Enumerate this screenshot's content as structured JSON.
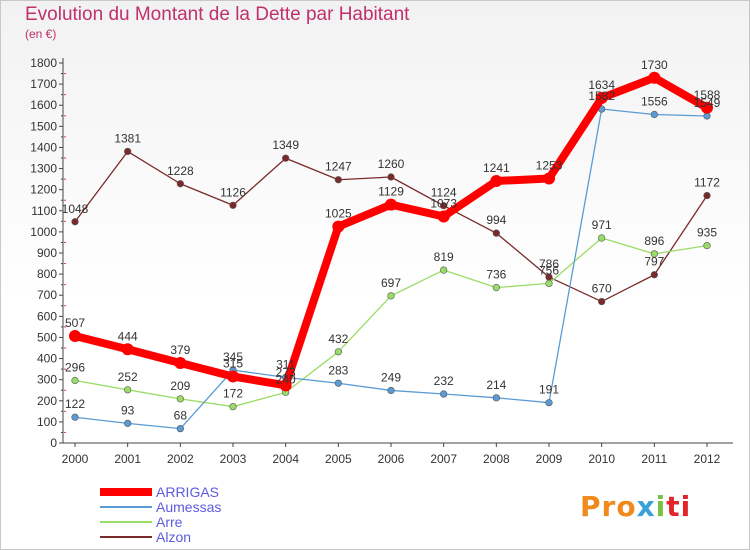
{
  "chart_data": {
    "type": "line",
    "title": "Evolution du Montant de la Dette par Habitant",
    "subtitle": "(en €)",
    "x": [
      "2000",
      "2001",
      "2002",
      "2003",
      "2004",
      "2005",
      "2006",
      "2007",
      "2008",
      "2009",
      "2010",
      "2011",
      "2012"
    ],
    "ylim": [
      0,
      1800
    ],
    "yticks": [
      0,
      100,
      200,
      300,
      400,
      500,
      600,
      700,
      800,
      900,
      1000,
      1100,
      1200,
      1300,
      1400,
      1500,
      1600,
      1700,
      1800
    ],
    "grid": false,
    "legend_position": "bottom-left",
    "series": [
      {
        "name": "ARRIGAS",
        "color": "#ff0000",
        "values": [
          507,
          444,
          379,
          315,
          273,
          1025,
          1129,
          1073,
          1241,
          1253,
          1634,
          1730,
          1588
        ]
      },
      {
        "name": "Aumessas",
        "color": "#5b9bd5",
        "values": [
          122,
          93,
          68,
          345,
          311,
          283,
          249,
          232,
          214,
          191,
          1582,
          1556,
          1549
        ]
      },
      {
        "name": "Arre",
        "color": "#99dd66",
        "values": [
          296,
          252,
          209,
          172,
          240,
          432,
          697,
          819,
          736,
          756,
          971,
          896,
          935
        ]
      },
      {
        "name": "Alzon",
        "color": "#7a2a2a",
        "values": [
          1048,
          1381,
          1228,
          1126,
          1349,
          1247,
          1260,
          1124,
          994,
          786,
          670,
          797,
          1172
        ]
      }
    ]
  },
  "logo": {
    "text": "Proxiti",
    "parts": [
      "Pro",
      "x",
      "i",
      "ti"
    ]
  }
}
